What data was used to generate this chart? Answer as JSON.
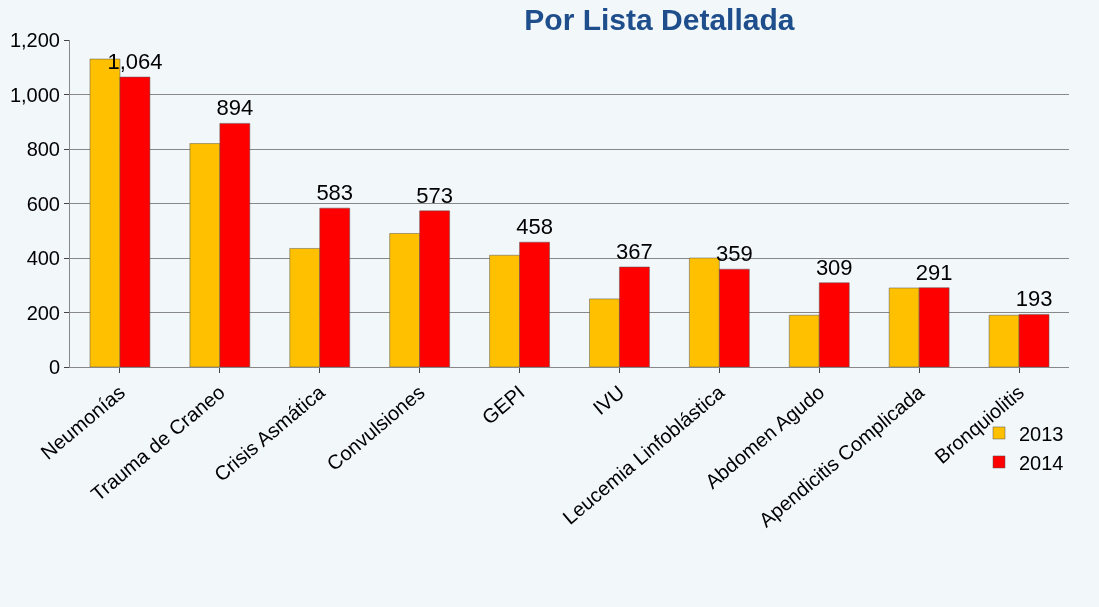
{
  "chart_data": {
    "type": "bar",
    "title": "Por Lista Detallada",
    "categories": [
      "Neumonías",
      "Trauma de Craneo",
      "Crisis Asmática",
      "Convulsiones",
      "GEPI",
      "IVU",
      "Leucemia Linfoblástica",
      "Abdomen Agudo",
      "Apendicitis Complicada",
      "Bronquiolitis"
    ],
    "series": [
      {
        "name": "2013",
        "color": "#ffc000",
        "values": [
          1130,
          820,
          435,
          490,
          410,
          250,
          400,
          190,
          290,
          190
        ]
      },
      {
        "name": "2014",
        "color": "#ff0000",
        "values": [
          1064,
          894,
          583,
          573,
          458,
          367,
          359,
          309,
          291,
          193
        ],
        "value_labels": [
          "1,064",
          "894",
          "583",
          "573",
          "458",
          "367",
          "359",
          "309",
          "291",
          "193"
        ]
      }
    ],
    "ylim": [
      0,
      1200
    ],
    "yticks": [
      0,
      {
        "value": 200,
        "label": "200"
      },
      {
        "value": 400,
        "label": "400"
      },
      {
        "value": 600,
        "label": "600"
      },
      {
        "value": 800,
        "label": "800"
      },
      {
        "value": 1000,
        "label": "1,000"
      },
      {
        "value": 1200,
        "label": "1,200"
      }
    ],
    "grid": "y",
    "legend": "bottom right"
  }
}
